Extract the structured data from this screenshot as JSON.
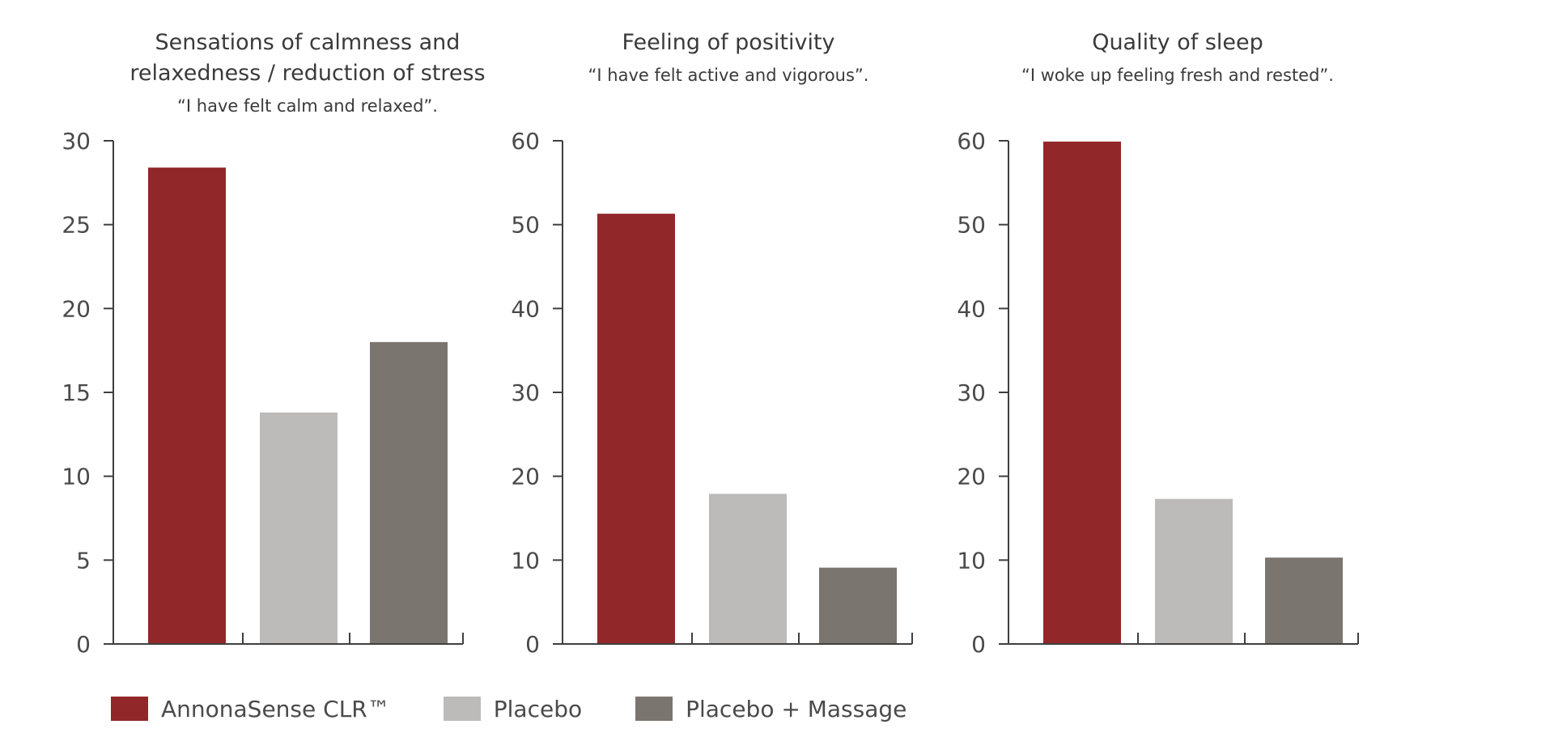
{
  "colors": {
    "annona": "#92272a",
    "placebo": "#bcbbb9",
    "massage": "#7b7570",
    "axis": "#3f3f3f",
    "text": "#3a3a3a"
  },
  "legend": [
    {
      "label": "AnnonaSense CLR™",
      "color_key": "annona"
    },
    {
      "label": "Placebo",
      "color_key": "placebo"
    },
    {
      "label": "Placebo + Massage",
      "color_key": "massage"
    }
  ],
  "chart_data": [
    {
      "type": "bar",
      "title_lines": [
        "Sensations of calmness and",
        "relaxedness / reduction of stress"
      ],
      "subtitle": "“I have felt calm and relaxed”.",
      "categories": [
        "AnnonaSense CLR™",
        "Placebo",
        "Placebo + Massage"
      ],
      "values": [
        28.4,
        13.8,
        18.0
      ],
      "ylim": [
        0,
        30
      ],
      "yticks": [
        0,
        5,
        10,
        15,
        20,
        25,
        30
      ],
      "grid": false
    },
    {
      "type": "bar",
      "title_lines": [
        "Feeling of positivity"
      ],
      "subtitle": "“I have felt active and vigorous”.",
      "categories": [
        "AnnonaSense CLR™",
        "Placebo",
        "Placebo + Massage"
      ],
      "values": [
        51.3,
        17.9,
        9.1
      ],
      "ylim": [
        0,
        60
      ],
      "yticks": [
        0,
        10,
        20,
        30,
        40,
        50,
        60
      ],
      "grid": false
    },
    {
      "type": "bar",
      "title_lines": [
        "Quality of sleep"
      ],
      "subtitle": "“I woke up feeling fresh and rested”.",
      "categories": [
        "AnnonaSense CLR™",
        "Placebo",
        "Placebo + Massage"
      ],
      "values": [
        59.9,
        17.3,
        10.3
      ],
      "ylim": [
        0,
        60
      ],
      "yticks": [
        0,
        10,
        20,
        30,
        40,
        50,
        60
      ],
      "grid": false
    }
  ]
}
